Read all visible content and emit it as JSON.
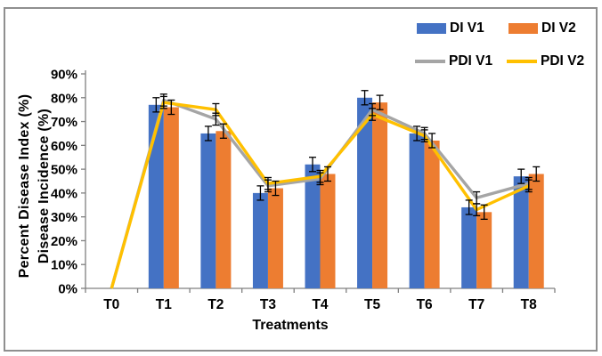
{
  "axes": {
    "y_label_line1": "Percent Disease Index (%)",
    "y_label_line2": "Disease Incidence (%)",
    "x_label": "Treatments",
    "y_ticks": [
      "0%",
      "10%",
      "20%",
      "30%",
      "40%",
      "50%",
      "60%",
      "70%",
      "80%",
      "90%"
    ]
  },
  "legend": {
    "position": "top-right",
    "items": [
      {
        "label": "DI V1",
        "swatch": "bar",
        "color": "#4472C4"
      },
      {
        "label": "DI V2",
        "swatch": "bar",
        "color": "#ED7D31"
      },
      {
        "label": "PDI V1",
        "swatch": "line",
        "color": "#A5A5A5"
      },
      {
        "label": "PDI V2",
        "swatch": "line",
        "color": "#FFC000"
      }
    ]
  },
  "chart_data": {
    "type": "bar",
    "subtype": "grouped-bars-with-line-overlay",
    "title": "",
    "xlabel": "Treatments",
    "ylabel": "Percent Disease Index (%) / Disease Incidence (%)",
    "categories": [
      "T0",
      "T1",
      "T2",
      "T3",
      "T4",
      "T5",
      "T6",
      "T7",
      "T8"
    ],
    "series": [
      {
        "name": "DI V1",
        "type": "bar",
        "color": "#4472C4",
        "values": [
          0,
          77,
          65,
          40,
          52,
          80,
          65,
          34,
          47
        ],
        "error_pct": 3
      },
      {
        "name": "DI V2",
        "type": "bar",
        "color": "#ED7D31",
        "values": [
          0,
          76,
          66,
          42,
          48,
          78,
          62,
          32,
          48
        ],
        "error_pct": 3
      },
      {
        "name": "PDI V1",
        "type": "line",
        "color": "#A5A5A5",
        "values": [
          0,
          79,
          71,
          43,
          46,
          75,
          65,
          38,
          44
        ],
        "error_pct": 2.5
      },
      {
        "name": "PDI V2",
        "type": "line",
        "color": "#FFC000",
        "values": [
          0,
          78,
          75,
          44,
          47,
          73,
          64,
          33,
          43
        ],
        "error_pct": 2.5
      }
    ],
    "ylim": [
      0,
      90
    ],
    "y_tick_step": 10,
    "y_tick_format": "percent",
    "grid": false,
    "error_bars": true,
    "legend_position": "top-right",
    "axis_color": "#808080",
    "error_bar_color": "#000000"
  }
}
